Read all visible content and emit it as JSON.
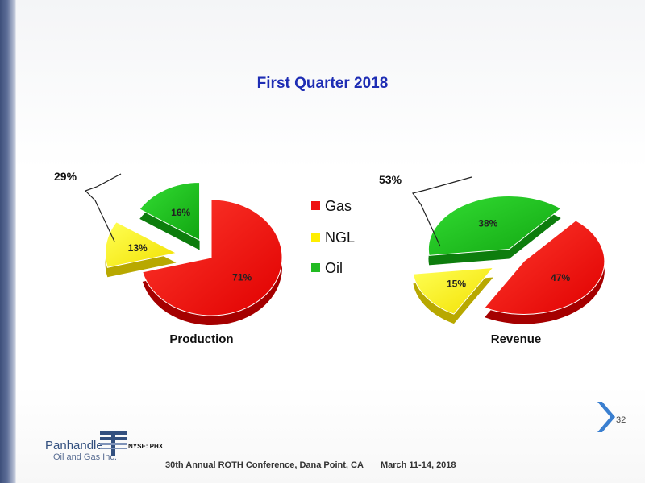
{
  "title": "First Quarter 2018",
  "legend": [
    {
      "name": "Gas",
      "color": "#ee1111"
    },
    {
      "name": "NGL",
      "color": "#ffee00"
    },
    {
      "name": "Oil",
      "color": "#22bb22"
    }
  ],
  "chart_data": [
    {
      "type": "pie",
      "title": "Production",
      "slices": [
        {
          "name": "Gas",
          "value": 71,
          "label": "71%"
        },
        {
          "name": "NGL",
          "value": 13,
          "label": "13%"
        },
        {
          "name": "Oil",
          "value": 16,
          "label": "16%"
        }
      ],
      "annotation": "29%"
    },
    {
      "type": "pie",
      "title": "Revenue",
      "slices": [
        {
          "name": "Gas",
          "value": 47,
          "label": "47%"
        },
        {
          "name": "NGL",
          "value": 15,
          "label": "15%"
        },
        {
          "name": "Oil",
          "value": 38,
          "label": "38%"
        }
      ],
      "annotation": "53%"
    }
  ],
  "page_number": "32",
  "logo": {
    "name": "Panhandle",
    "subtitle": "Oil and Gas Inc."
  },
  "ticker": "NYSE: PHX",
  "footer": {
    "conference": "30th Annual ROTH Conference, Dana Point, CA",
    "dates": "March 11-14, 2018"
  }
}
